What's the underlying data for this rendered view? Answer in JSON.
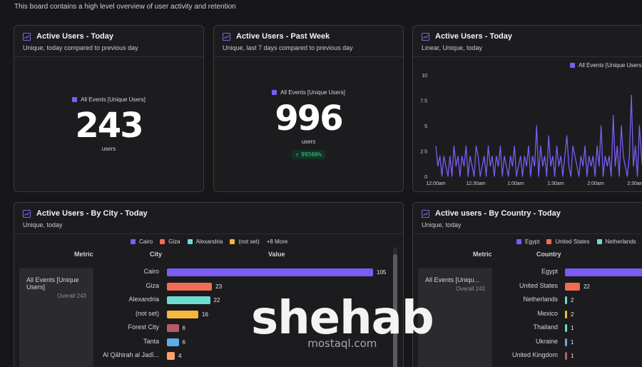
{
  "board": {
    "description": "This board contains a high level overview of user activity and retention"
  },
  "colors": {
    "purple": "#7b5cf5",
    "orange": "#f26b55",
    "teal": "#6fdbd0",
    "yellow": "#f5b83d",
    "maroon": "#b85a6a",
    "blue": "#5dade8",
    "peach": "#f7a36a",
    "green": "#3ccf8a"
  },
  "cards": {
    "today": {
      "title": "Active Users - Today",
      "subtitle": "Unique, today compared to previous day",
      "legend": "All Events [Unique Users]",
      "value": "243",
      "unit": "users"
    },
    "week": {
      "title": "Active Users - Past Week",
      "subtitle": "Unique, last 7 days compared to previous day",
      "legend": "All Events [Unique Users]",
      "value": "996",
      "unit": "users",
      "delta": "99500%",
      "delta_icon": "arrow-up-icon"
    },
    "linear": {
      "title": "Active Users - Today",
      "subtitle": "Linear, Unique, today",
      "legend": "All Events [Unique Users]",
      "y_ticks": [
        "10",
        "7.5",
        "5",
        "2.5",
        "0"
      ],
      "x_ticks": [
        "12:00am",
        "12:30am",
        "1:00am",
        "1:30am",
        "2:00am",
        "2:30am"
      ]
    },
    "city": {
      "title": "Active Users - By City - Today",
      "subtitle": "Unique, today",
      "legend": [
        {
          "label": "Cairo",
          "color": "#7b5cf5"
        },
        {
          "label": "Giza",
          "color": "#f26b55"
        },
        {
          "label": "Alexandria",
          "color": "#6fdbd0"
        },
        {
          "label": "(not set)",
          "color": "#f5b83d"
        }
      ],
      "more": "+8 More",
      "col_metric": "Metric",
      "col_city": "City",
      "col_value": "Value",
      "metric_name": "All Events [Unique Users]",
      "metric_overall_label": "Overall",
      "metric_overall_value": "243",
      "rows": [
        {
          "label": "Cairo",
          "value": 105,
          "value_text": "105",
          "color": "#7b5cf5"
        },
        {
          "label": "Giza",
          "value": 23,
          "value_text": "23",
          "color": "#f26b55"
        },
        {
          "label": "Alexandria",
          "value": 22,
          "value_text": "22",
          "color": "#6fdbd0"
        },
        {
          "label": "(not set)",
          "value": 16,
          "value_text": "16",
          "color": "#f5b83d"
        },
        {
          "label": "Forest City",
          "value": 6,
          "value_text": "6",
          "color": "#b85a6a"
        },
        {
          "label": "Tanta",
          "value": 6,
          "value_text": "6",
          "color": "#5dade8"
        },
        {
          "label": "Al Qāhirah al Jadī...",
          "value": 4,
          "value_text": "4",
          "color": "#f7a36a"
        }
      ]
    },
    "country": {
      "title": "Active users - By Country - Today",
      "subtitle": "Unique, today",
      "legend": [
        {
          "label": "Egypt",
          "color": "#7b5cf5"
        },
        {
          "label": "United States",
          "color": "#f26b55"
        },
        {
          "label": "Netherlands",
          "color": "#6fdbd0"
        }
      ],
      "col_metric": "Metric",
      "col_country": "Country",
      "metric_name": "All Events [Uniqu...",
      "metric_overall_label": "Overall",
      "metric_overall_value": "243",
      "rows": [
        {
          "label": "Egypt",
          "value": 210,
          "value_text": "",
          "color": "#7b5cf5"
        },
        {
          "label": "United States",
          "value": 22,
          "value_text": "22",
          "color": "#f26b55"
        },
        {
          "label": "Netherlands",
          "value": 2,
          "value_text": "2",
          "color": "#6fdbd0"
        },
        {
          "label": "Mexico",
          "value": 2,
          "value_text": "2",
          "color": "#f5b83d"
        },
        {
          "label": "Thailand",
          "value": 1,
          "value_text": "1",
          "color": "#6fdbd0"
        },
        {
          "label": "Ukraine",
          "value": 1,
          "value_text": "1",
          "color": "#5dade8"
        },
        {
          "label": "United Kingdom",
          "value": 1,
          "value_text": "1",
          "color": "#b85a6a"
        }
      ]
    }
  },
  "chart_data": {
    "type": "line",
    "title": "Active Users - Today",
    "xlabel": "",
    "ylabel": "",
    "ylim": [
      0,
      10
    ],
    "x_ticks": [
      "12:00am",
      "12:30am",
      "1:00am",
      "1:30am",
      "2:00am",
      "2:30am"
    ],
    "series": [
      {
        "name": "All Events [Unique Users]",
        "values": [
          3,
          1,
          2,
          0,
          2,
          1,
          0,
          2,
          0,
          3,
          1,
          2,
          0,
          2,
          1,
          3,
          0,
          2,
          1,
          0,
          3,
          2,
          0,
          1,
          2,
          0,
          3,
          1,
          2,
          0,
          2,
          1,
          3,
          0,
          2,
          1,
          0,
          2,
          1,
          3,
          0,
          1,
          2,
          0,
          2,
          1,
          3,
          0,
          2,
          1,
          5,
          0,
          3,
          1,
          2,
          0,
          4,
          1,
          2,
          0,
          3,
          1,
          2,
          0,
          2,
          4,
          1,
          0,
          3,
          2,
          1,
          0,
          2,
          1,
          3,
          0,
          2,
          1,
          2,
          0,
          3,
          1,
          5,
          0,
          2,
          1,
          2,
          0,
          6,
          1,
          3,
          0,
          5,
          2,
          1,
          0,
          2,
          8,
          1,
          3,
          0,
          5,
          2,
          0,
          1,
          3,
          0,
          2,
          1,
          0
        ]
      }
    ]
  },
  "watermark": {
    "main": "shehab",
    "sub": "mostaql.com"
  }
}
